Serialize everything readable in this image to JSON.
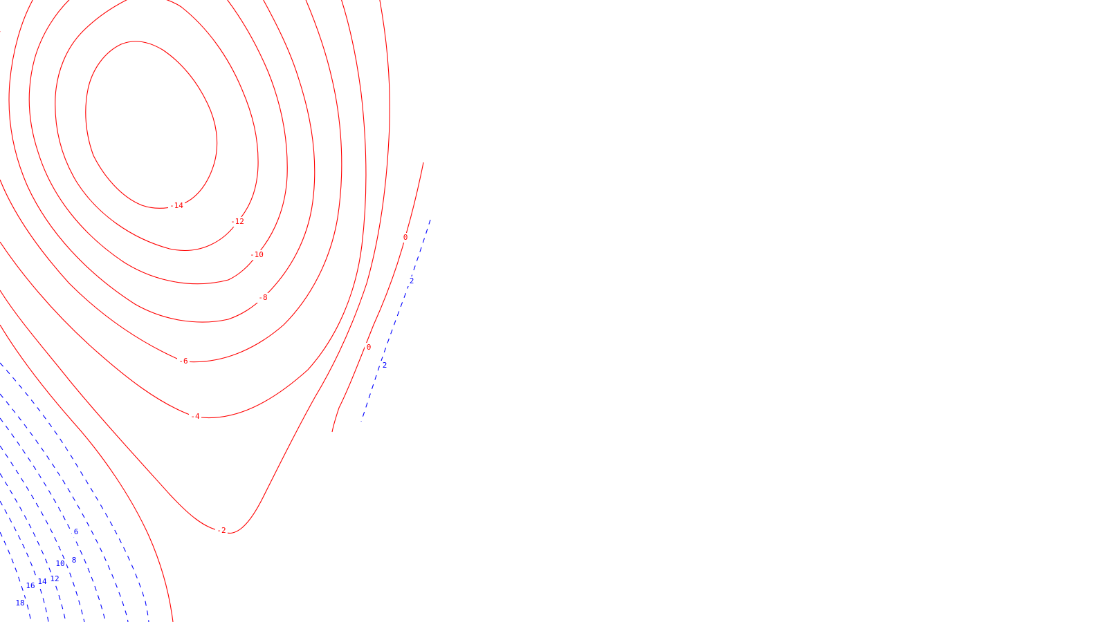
{
  "chart_data": {
    "type": "contour",
    "negative_color": "#ff0000",
    "positive_color": "#0000ff",
    "negative_style": "solid",
    "positive_style": "dashed",
    "levels": [
      -14,
      -12,
      -10,
      -8,
      -6,
      -4,
      -2,
      0,
      2,
      6,
      8,
      10,
      12,
      14,
      16,
      18
    ],
    "labels": {
      "neg14": "-14",
      "neg12": "-12",
      "neg10": "-10",
      "neg8": "-8",
      "neg6": "-6",
      "neg4": "-4",
      "neg2": "-2",
      "zeroA": "0",
      "zeroB": "0",
      "posA": "2",
      "posB": "2",
      "p6": "6",
      "p8": "8",
      "p10": "10",
      "p12": "12",
      "p14": "14",
      "p16": "16",
      "p18": "18"
    }
  }
}
